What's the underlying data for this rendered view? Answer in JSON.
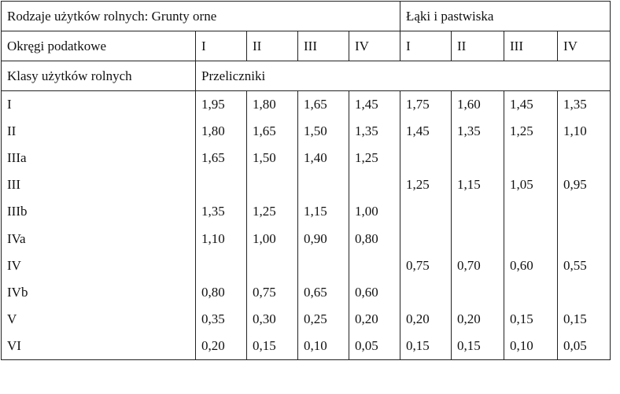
{
  "header": {
    "row1_left": "Rodzaje użytków rolnych: Grunty orne",
    "row1_right": "Łąki i pastwiska",
    "row2_label": "Okręgi podatkowe",
    "districts": [
      "I",
      "II",
      "III",
      "IV",
      "I",
      "II",
      "III",
      "IV"
    ],
    "row3_label": "Klasy użytków rolnych",
    "row3_value": "Przeliczniki"
  },
  "rows": [
    {
      "cls": "I",
      "v": [
        "1,95",
        "1,80",
        "1,65",
        "1,45",
        "1,75",
        "1,60",
        "1,45",
        "1,35"
      ]
    },
    {
      "cls": "II",
      "v": [
        "1,80",
        "1,65",
        "1,50",
        "1,35",
        "1,45",
        "1,35",
        "1,25",
        "1,10"
      ]
    },
    {
      "cls": "IIIa",
      "v": [
        "1,65",
        "1,50",
        "1,40",
        "1,25",
        "",
        "",
        "",
        ""
      ]
    },
    {
      "cls": "III",
      "v": [
        "",
        "",
        "",
        "",
        "1,25",
        "1,15",
        "1,05",
        "0,95"
      ]
    },
    {
      "cls": "IIIb",
      "v": [
        "1,35",
        "1,25",
        "1,15",
        "1,00",
        "",
        "",
        "",
        ""
      ]
    },
    {
      "cls": "IVa",
      "v": [
        "1,10",
        "1,00",
        "0,90",
        "0,80",
        "",
        "",
        "",
        ""
      ]
    },
    {
      "cls": "IV",
      "v": [
        "",
        "",
        "",
        "",
        "0,75",
        "0,70",
        "0,60",
        "0,55"
      ]
    },
    {
      "cls": "IVb",
      "v": [
        "0,80",
        "0,75",
        "0,65",
        "0,60",
        "",
        "",
        "",
        ""
      ]
    },
    {
      "cls": "V",
      "v": [
        "0,35",
        "0,30",
        "0,25",
        "0,20",
        "0,20",
        "0,20",
        "0,15",
        "0,15"
      ]
    },
    {
      "cls": "VI",
      "v": [
        "0,20",
        "0,15",
        "0,10",
        "0,05",
        "0,15",
        "0,15",
        "0,10",
        "0,05"
      ]
    }
  ]
}
